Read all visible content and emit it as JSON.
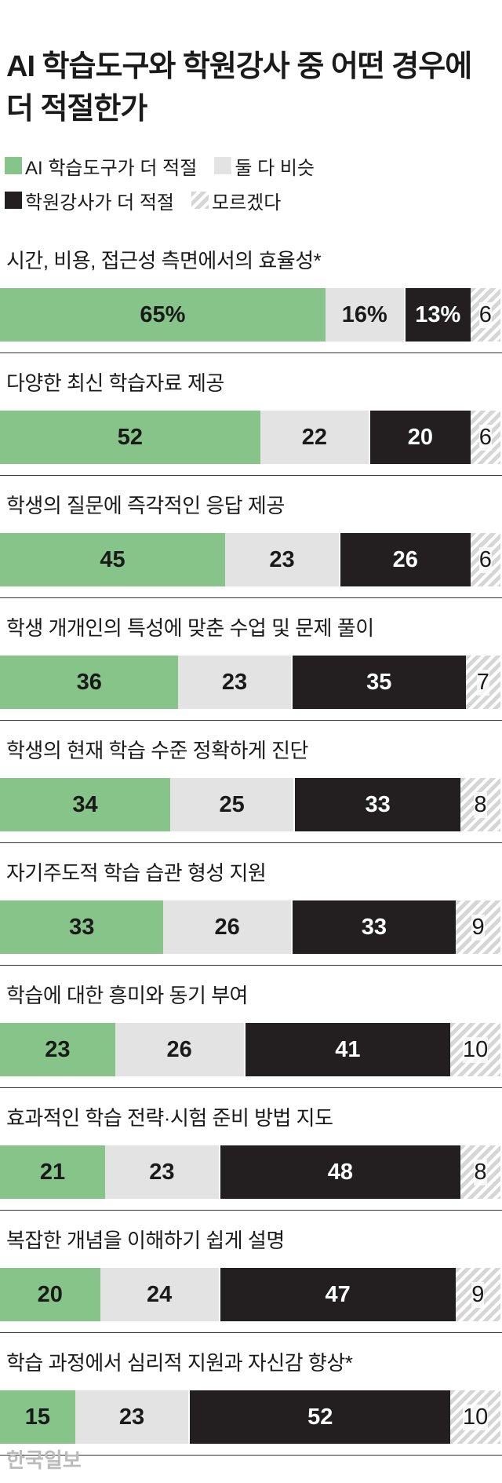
{
  "chart_data": {
    "type": "stacked-bar",
    "title": "AI 학습도구와 학원강사 중 어떤 경우에 더 적절한가",
    "categories": [
      "시간, 비용, 접근성 측면에서의 효율성*",
      "다양한 최신 학습자료 제공",
      "학생의 질문에 즉각적인 응답 제공",
      "학생 개개인의 특성에 맞춘 수업 및 문제 풀이",
      "학생의 현재 학습 수준 정확하게 진단",
      "자기주도적 학습 습관 형성 지원",
      "학습에 대한 흥미와 동기 부여",
      "효과적인 학습 전략·시험 준비 방법 지도",
      "복잡한 개념을 이해하기 쉽게 설명",
      "학습 과정에서 심리적 지원과 자신감 향상*"
    ],
    "series": [
      {
        "name": "AI 학습도구가 더 적절",
        "color": "#86c489",
        "text_color": "#1a1a1a",
        "values": [
          65,
          52,
          45,
          36,
          34,
          33,
          23,
          21,
          20,
          15
        ],
        "value_labels": [
          "65%",
          "52",
          "45",
          "36",
          "34",
          "33",
          "23",
          "21",
          "20",
          "15"
        ]
      },
      {
        "name": "둘 다 비슷",
        "color": "#e3e3e3",
        "text_color": "#1a1a1a",
        "values": [
          16,
          22,
          23,
          23,
          25,
          26,
          26,
          23,
          24,
          23
        ],
        "value_labels": [
          "16%",
          "22",
          "23",
          "23",
          "25",
          "26",
          "26",
          "23",
          "24",
          "23"
        ]
      },
      {
        "name": "학원강사가 더 적절",
        "color": "#231f20",
        "text_color": "#ffffff",
        "values": [
          13,
          20,
          26,
          35,
          33,
          33,
          41,
          48,
          47,
          52
        ],
        "value_labels": [
          "13%",
          "20",
          "26",
          "35",
          "33",
          "33",
          "41",
          "48",
          "47",
          "52"
        ]
      },
      {
        "name": "모르겠다",
        "color": "#d6d6d6",
        "text_color": "#1a1a1a",
        "pattern": "hatch",
        "values": [
          6,
          6,
          6,
          7,
          8,
          9,
          10,
          8,
          9,
          10
        ],
        "value_labels": [
          "6",
          "6",
          "6",
          "7",
          "8",
          "9",
          "10",
          "8",
          "9",
          "10"
        ]
      }
    ],
    "credit": "한국일보"
  }
}
